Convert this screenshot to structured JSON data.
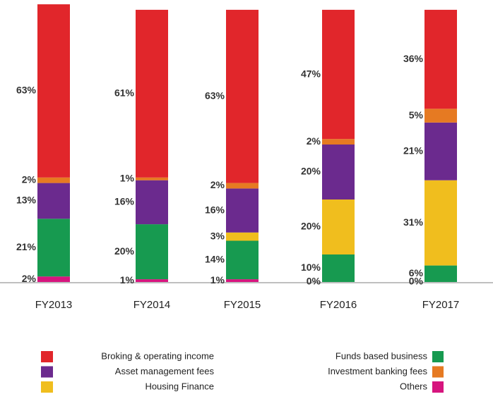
{
  "chart_data": {
    "type": "stacked_bar",
    "categories": [
      "FY2013",
      "FY2014",
      "FY2015",
      "FY2016",
      "FY2017"
    ],
    "ylim": [
      0,
      100
    ],
    "series": [
      {
        "name": "Others",
        "color": "#d6157e",
        "values": [
          2,
          1,
          1,
          0,
          0
        ],
        "value_labels": [
          "2%",
          "1%",
          "1%",
          "0%",
          "0%"
        ]
      },
      {
        "name": "Funds based business",
        "color": "#179a50",
        "values": [
          21,
          20,
          14,
          10,
          6
        ],
        "value_labels": [
          "21%",
          "20%",
          "14%",
          "10%",
          "6%"
        ]
      },
      {
        "name": "Housing Finance",
        "color": "#f0be1e",
        "values": [
          null,
          null,
          3,
          20,
          31
        ],
        "value_labels": [
          null,
          null,
          "3%",
          "20%",
          "31%"
        ]
      },
      {
        "name": "Asset management fees",
        "color": "#6b2a8e",
        "values": [
          13,
          16,
          16,
          20,
          21
        ],
        "value_labels": [
          "13%",
          "16%",
          "16%",
          "20%",
          "21%"
        ]
      },
      {
        "name": "Investment banking fees",
        "color": "#e67a22",
        "values": [
          2,
          1,
          2,
          2,
          5
        ],
        "value_labels": [
          "2%",
          "1%",
          "2%",
          "2%",
          "5%"
        ]
      },
      {
        "name": "Broking & operating income",
        "color": "#e1262b",
        "values": [
          63,
          61,
          63,
          47,
          36
        ],
        "value_labels": [
          "63%",
          "61%",
          "63%",
          "47%",
          "36%"
        ]
      }
    ]
  }
}
